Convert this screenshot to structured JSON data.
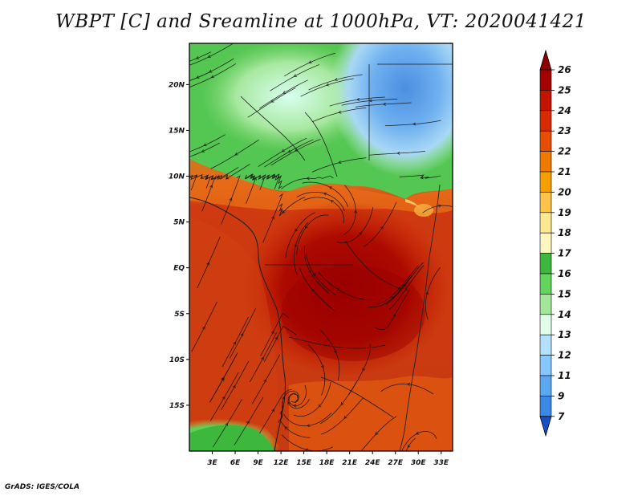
{
  "title": "WBPT [C] and Sreamline at 1000hPa, VT: 2020041421",
  "credit": "GrADS: IGES/COLA",
  "map": {
    "lat_labels": [
      "20N",
      "15N",
      "10N",
      "5N",
      "EQ",
      "5S",
      "10S",
      "15S"
    ],
    "lat_values": [
      20,
      15,
      10,
      5,
      0,
      -5,
      -10,
      -15
    ],
    "lon_labels": [
      "3E",
      "6E",
      "9E",
      "12E",
      "15E",
      "18E",
      "21E",
      "24E",
      "27E",
      "30E",
      "33E"
    ],
    "lon_values": [
      3,
      6,
      9,
      12,
      15,
      18,
      21,
      24,
      27,
      30,
      33
    ],
    "lon_range": [
      0,
      34.5
    ],
    "lat_range": [
      -20,
      24.5
    ]
  },
  "colorbar": {
    "labels": [
      "26",
      "25",
      "24",
      "23",
      "22",
      "21",
      "20",
      "19",
      "18",
      "17",
      "16",
      "15",
      "14",
      "13",
      "12",
      "11",
      "9",
      "7"
    ],
    "colors": [
      "#a50000",
      "#c31400",
      "#d92b00",
      "#e64d00",
      "#f07a00",
      "#f5a000",
      "#fcc24a",
      "#fde890",
      "#fff6bf",
      "#3db83d",
      "#63d45c",
      "#a3e89a",
      "#e0ffe8",
      "#b3e0ff",
      "#87c7ff",
      "#5ca8f0",
      "#3b89e6",
      "#2166d9"
    ],
    "top_arrow_color": "#8c0000",
    "bottom_arrow_color": "#1a4fc2"
  }
}
